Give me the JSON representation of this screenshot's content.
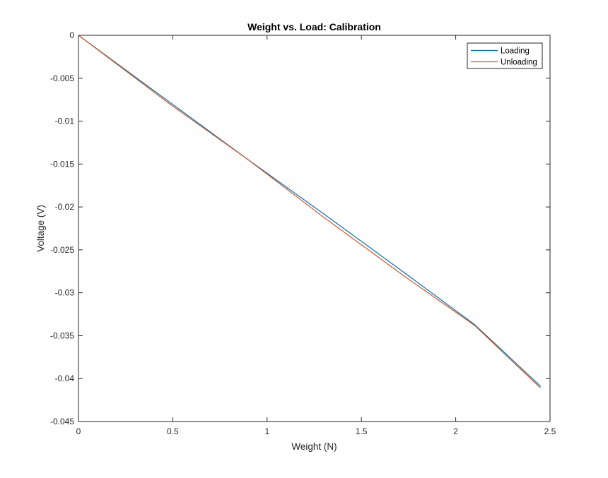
{
  "chart_data": {
    "type": "line",
    "title": "Weight vs. Load: Calibration",
    "xlabel": "Weight (N)",
    "ylabel": "Voltage (V)",
    "xlim": [
      0,
      2.5
    ],
    "ylim": [
      -0.045,
      0
    ],
    "xticks": [
      0,
      0.5,
      1,
      1.5,
      2,
      2.5
    ],
    "xtick_labels": [
      "0",
      "0.5",
      "1",
      "1.5",
      "2",
      "2.5"
    ],
    "yticks": [
      0,
      -0.005,
      -0.01,
      -0.015,
      -0.02,
      -0.025,
      -0.03,
      -0.035,
      -0.04,
      -0.045
    ],
    "ytick_labels": [
      "0",
      "-0.005",
      "-0.01",
      "-0.015",
      "-0.02",
      "-0.025",
      "-0.03",
      "-0.035",
      "-0.04",
      "-0.045"
    ],
    "grid": false,
    "legend_position": "top-right",
    "series": [
      {
        "name": "Loading",
        "color": "#0072BD",
        "x": [
          0,
          0.49,
          0.9,
          1.3,
          1.73,
          2.1,
          2.45
        ],
        "y": [
          0,
          -0.0079,
          -0.0145,
          -0.0208,
          -0.0277,
          -0.0337,
          -0.0409
        ]
      },
      {
        "name": "Unloading",
        "color": "#D95319",
        "x": [
          0,
          0.49,
          0.9,
          1.3,
          1.73,
          2.1,
          2.45
        ],
        "y": [
          0,
          -0.0081,
          -0.0145,
          -0.0212,
          -0.0281,
          -0.0338,
          -0.0411
        ]
      }
    ]
  }
}
